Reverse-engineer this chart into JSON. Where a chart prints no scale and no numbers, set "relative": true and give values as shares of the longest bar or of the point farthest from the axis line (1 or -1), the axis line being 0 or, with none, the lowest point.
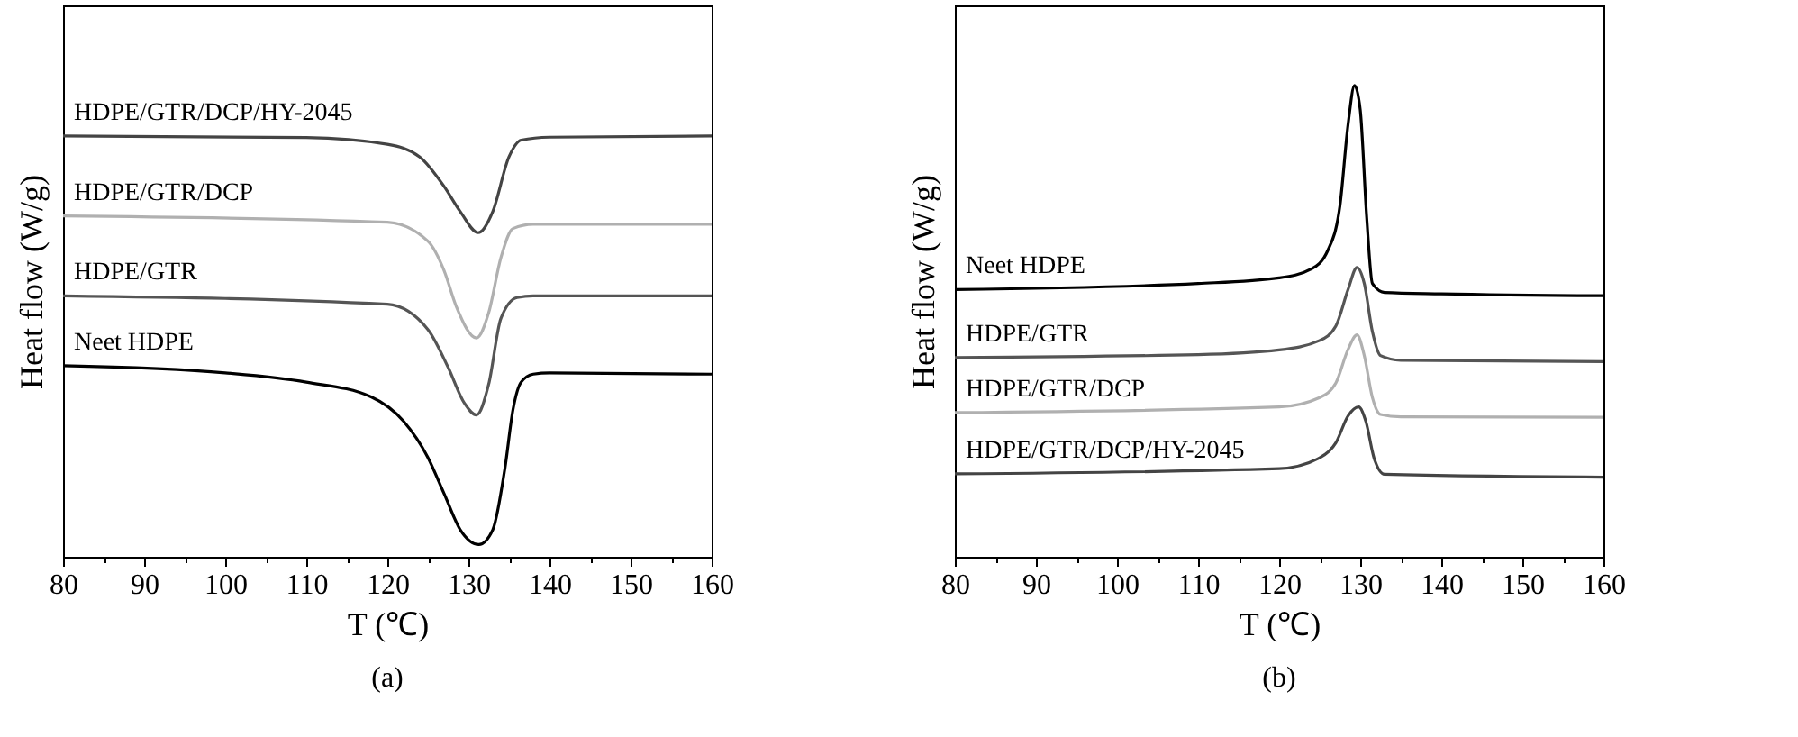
{
  "chart_data": [
    {
      "type": "line",
      "relative": true,
      "xlabel": "T (℃)",
      "ylabel": "Heat flow (W/g)",
      "annotations": [
        "(a)"
      ],
      "xlim": [
        80,
        160
      ],
      "xticks": [
        80,
        {
          "value": 85,
          "label": null
        },
        90,
        {
          "value": 95,
          "label": null
        },
        100,
        {
          "value": 105,
          "label": null
        },
        110,
        {
          "value": 115,
          "label": null
        },
        120,
        {
          "value": 125,
          "label": null
        },
        130,
        {
          "value": 135,
          "label": null
        },
        140,
        {
          "value": 145,
          "label": null
        },
        150,
        {
          "value": 155,
          "label": null
        },
        160
      ],
      "series": [
        {
          "name": "HDPE/GTR/DCP/HY-2045",
          "color": "#444444",
          "x": [
            80,
            110,
            120,
            124,
            127,
            129,
            131.2,
            133,
            135,
            136.5,
            140,
            160
          ],
          "values": [
            1.0,
            0.996,
            0.98,
            0.95,
            0.88,
            0.82,
            0.77,
            0.82,
            0.95,
            0.99,
            0.997,
            1.0
          ]
        },
        {
          "name": "HDPE/GTR/DCP",
          "color": "#b0b0b0",
          "x": [
            80,
            120,
            125,
            127,
            128.5,
            131,
            132.5,
            134,
            135.5,
            138,
            160
          ],
          "values": [
            0.81,
            0.795,
            0.75,
            0.68,
            0.595,
            0.52,
            0.58,
            0.71,
            0.78,
            0.79,
            0.79
          ]
        },
        {
          "name": "HDPE/GTR",
          "color": "#555555",
          "x": [
            80,
            120,
            125,
            127.5,
            129.5,
            131,
            132.5,
            134,
            136,
            138,
            160
          ],
          "values": [
            0.62,
            0.6,
            0.54,
            0.45,
            0.365,
            0.337,
            0.41,
            0.566,
            0.616,
            0.62,
            0.62
          ]
        },
        {
          "name": "Neet HDPE",
          "color": "#000000",
          "x": [
            80,
            100,
            110,
            118,
            122,
            125,
            127,
            129,
            131.3,
            133,
            134.5,
            135.5,
            136.5,
            138,
            140,
            160
          ],
          "values": [
            0.454,
            0.437,
            0.415,
            0.38,
            0.322,
            0.236,
            0.15,
            0.064,
            0.029,
            0.064,
            0.21,
            0.35,
            0.415,
            0.434,
            0.437,
            0.434
          ]
        }
      ]
    },
    {
      "type": "line",
      "relative": true,
      "xlabel": "T (℃)",
      "ylabel": "Heat flow (W/g)",
      "annotations": [
        "(b)"
      ],
      "xlim": [
        80,
        160
      ],
      "xticks": [
        80,
        {
          "value": 85,
          "label": null
        },
        90,
        {
          "value": 95,
          "label": null
        },
        100,
        {
          "value": 105,
          "label": null
        },
        110,
        {
          "value": 115,
          "label": null
        },
        120,
        {
          "value": 125,
          "label": null
        },
        130,
        {
          "value": 135,
          "label": null
        },
        140,
        {
          "value": 145,
          "label": null
        },
        150,
        {
          "value": 155,
          "label": null
        },
        160
      ],
      "series": [
        {
          "name": "Neet HDPE",
          "color": "#000000",
          "x": [
            80,
            110,
            120,
            124,
            126,
            127.5,
            128.5,
            129.3,
            130,
            130.8,
            131.5,
            133,
            140,
            160
          ],
          "values": [
            0.567,
            0.58,
            0.592,
            0.611,
            0.65,
            0.745,
            0.917,
            1.0,
            0.949,
            0.72,
            0.58,
            0.561,
            0.558,
            0.554
          ]
        },
        {
          "name": "HDPE/GTR",
          "color": "#555555",
          "x": [
            80,
            110,
            120,
            125,
            127,
            128.5,
            129.6,
            130.5,
            131.5,
            132.5,
            135,
            160
          ],
          "values": [
            0.423,
            0.429,
            0.439,
            0.459,
            0.49,
            0.567,
            0.614,
            0.58,
            0.478,
            0.427,
            0.417,
            0.414
          ]
        },
        {
          "name": "HDPE/GTR/DCP",
          "color": "#b0b0b0",
          "x": [
            80,
            120,
            125,
            127,
            128.5,
            129.6,
            130.5,
            131.5,
            132.5,
            135,
            160
          ],
          "values": [
            0.306,
            0.318,
            0.338,
            0.369,
            0.44,
            0.471,
            0.427,
            0.338,
            0.302,
            0.297,
            0.296
          ]
        },
        {
          "name": "HDPE/GTR/DCP/HY-2045",
          "color": "#444444",
          "x": [
            80,
            120,
            125,
            127,
            128.5,
            129.8,
            130.7,
            131.7,
            133,
            160
          ],
          "values": [
            0.176,
            0.187,
            0.21,
            0.242,
            0.299,
            0.318,
            0.287,
            0.21,
            0.175,
            0.169
          ]
        }
      ]
    }
  ]
}
